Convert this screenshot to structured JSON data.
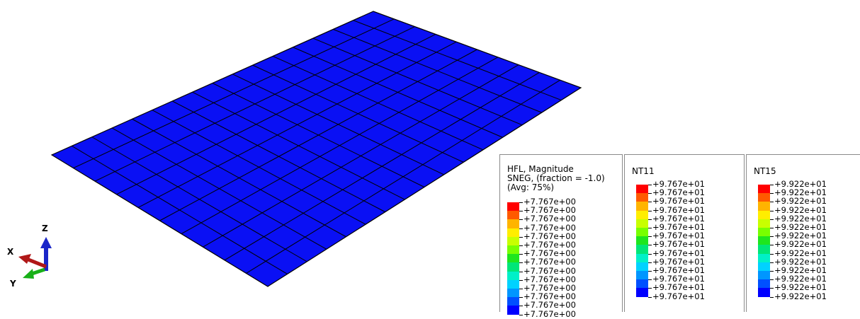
{
  "viewport": {
    "mesh": {
      "rows": 10,
      "cols": 16,
      "fill_color": "#0a10f4",
      "edge_color": "#000000"
    }
  },
  "triad": {
    "x_label": "X",
    "y_label": "Y",
    "z_label": "Z",
    "x_color": "#b01818",
    "y_color": "#18b018",
    "z_color": "#1a26c8"
  },
  "legends": [
    {
      "id": "hfl",
      "title_lines": [
        "HFL, Magnitude",
        "SNEG, (fraction = -1.0)",
        "(Avg: 75%)"
      ],
      "values": [
        "+7.767e+00",
        "+7.767e+00",
        "+7.767e+00",
        "+7.767e+00",
        "+7.767e+00",
        "+7.767e+00",
        "+7.767e+00",
        "+7.767e+00",
        "+7.767e+00",
        "+7.767e+00",
        "+7.767e+00",
        "+7.767e+00",
        "+7.767e+00",
        "+7.767e+00"
      ]
    },
    {
      "id": "nt11",
      "title_lines": [
        "NT11"
      ],
      "values": [
        "+9.767e+01",
        "+9.767e+01",
        "+9.767e+01",
        "+9.767e+01",
        "+9.767e+01",
        "+9.767e+01",
        "+9.767e+01",
        "+9.767e+01",
        "+9.767e+01",
        "+9.767e+01",
        "+9.767e+01",
        "+9.767e+01",
        "+9.767e+01",
        "+9.767e+01"
      ]
    },
    {
      "id": "nt15",
      "title_lines": [
        "NT15"
      ],
      "values": [
        "+9.922e+01",
        "+9.922e+01",
        "+9.922e+01",
        "+9.922e+01",
        "+9.922e+01",
        "+9.922e+01",
        "+9.922e+01",
        "+9.922e+01",
        "+9.922e+01",
        "+9.922e+01",
        "+9.922e+01",
        "+9.922e+01",
        "+9.922e+01",
        "+9.922e+01"
      ]
    }
  ],
  "colormap": [
    "#ff0000",
    "#ff5a00",
    "#ffb400",
    "#ffee00",
    "#c8ff00",
    "#78ff00",
    "#1ee61e",
    "#00e678",
    "#00f0c8",
    "#00d2ff",
    "#0096ff",
    "#0050ff",
    "#0000ff"
  ]
}
